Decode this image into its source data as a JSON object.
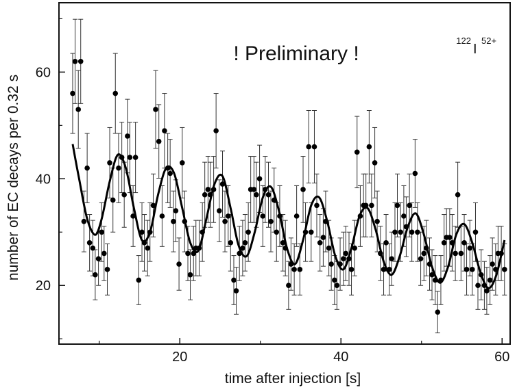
{
  "chart_data": {
    "type": "scatter",
    "title": "",
    "xlabel": "time after injection [s]",
    "ylabel": "number of EC decays per 0.32 s",
    "xlim": [
      5,
      61
    ],
    "ylim": [
      9,
      73
    ],
    "x_ticks": [
      20,
      40,
      60
    ],
    "y_ticks": [
      20,
      40,
      60
    ],
    "grid": false,
    "annotations": {
      "preliminary": "! Preliminary !",
      "isotope_mass": "122",
      "element": "I",
      "charge": "52+"
    },
    "colors": {
      "points": "#000000",
      "fit_line": "#000000",
      "error_bars": "#333333"
    },
    "fit": {
      "x": [
        6.7,
        7.5,
        8.5,
        9.5,
        10.3,
        11.3,
        12.3,
        13.3,
        14.3,
        15.3,
        16.3,
        17.3,
        18.3,
        19.3,
        20.3,
        21.3,
        22.3,
        23.3,
        24.3,
        25.3,
        26.3,
        27.3,
        28.3,
        29.3,
        30.3,
        31.3,
        32.3,
        33.3,
        34.3,
        35.3,
        36.3,
        37.3,
        38.3,
        39.3,
        40.3,
        41.3,
        42.3,
        43.3,
        44.3,
        45.3,
        46.3,
        47.3,
        48.3,
        49.3,
        50.3,
        51.3,
        52.3,
        53.3,
        54.3,
        55.3,
        56.3,
        57.3,
        58.3,
        59.3,
        60.3
      ],
      "y": [
        46.5,
        40.0,
        32.5,
        29.5,
        32.5,
        39.5,
        44.5,
        42.0,
        34.5,
        28.5,
        30.0,
        37.0,
        42.0,
        41.0,
        34.5,
        28.0,
        26.5,
        32.5,
        39.0,
        40.5,
        34.5,
        27.5,
        25.5,
        30.0,
        36.5,
        38.5,
        34.0,
        27.0,
        24.0,
        28.5,
        35.0,
        36.5,
        32.0,
        25.5,
        23.0,
        27.0,
        33.0,
        34.5,
        30.5,
        24.5,
        22.0,
        25.5,
        31.0,
        33.5,
        29.5,
        23.5,
        20.5,
        23.5,
        29.5,
        31.5,
        28.0,
        22.5,
        19.5,
        22.0,
        28.5
      ]
    },
    "points": [
      {
        "x": 6.7,
        "y": 56,
        "err": 7.5
      },
      {
        "x": 7.0,
        "y": 62,
        "err": 7.9
      },
      {
        "x": 7.4,
        "y": 53,
        "err": 7.3
      },
      {
        "x": 7.7,
        "y": 62,
        "err": 7.9
      },
      {
        "x": 8.1,
        "y": 32,
        "err": 5.7
      },
      {
        "x": 8.5,
        "y": 42,
        "err": 6.5
      },
      {
        "x": 8.8,
        "y": 28,
        "err": 5.3
      },
      {
        "x": 9.2,
        "y": 27,
        "err": 5.2
      },
      {
        "x": 9.5,
        "y": 22,
        "err": 4.7
      },
      {
        "x": 9.9,
        "y": 25,
        "err": 5.0
      },
      {
        "x": 10.3,
        "y": 30,
        "err": 5.5
      },
      {
        "x": 10.6,
        "y": 26,
        "err": 5.1
      },
      {
        "x": 11.0,
        "y": 23,
        "err": 4.8
      },
      {
        "x": 11.3,
        "y": 43,
        "err": 6.6
      },
      {
        "x": 11.7,
        "y": 36,
        "err": 6.0
      },
      {
        "x": 12.0,
        "y": 56,
        "err": 7.5
      },
      {
        "x": 12.4,
        "y": 42,
        "err": 6.5
      },
      {
        "x": 12.8,
        "y": 44,
        "err": 6.6
      },
      {
        "x": 13.1,
        "y": 37,
        "err": 6.1
      },
      {
        "x": 13.5,
        "y": 48,
        "err": 6.9
      },
      {
        "x": 13.8,
        "y": 44,
        "err": 6.6
      },
      {
        "x": 14.2,
        "y": 33,
        "err": 5.7
      },
      {
        "x": 14.5,
        "y": 44,
        "err": 6.6
      },
      {
        "x": 14.9,
        "y": 21,
        "err": 4.6
      },
      {
        "x": 15.3,
        "y": 30,
        "err": 5.5
      },
      {
        "x": 15.6,
        "y": 28,
        "err": 5.3
      },
      {
        "x": 16.0,
        "y": 27,
        "err": 5.2
      },
      {
        "x": 16.3,
        "y": 30,
        "err": 5.5
      },
      {
        "x": 16.7,
        "y": 35,
        "err": 5.9
      },
      {
        "x": 17.0,
        "y": 53,
        "err": 7.3
      },
      {
        "x": 17.4,
        "y": 47,
        "err": 6.9
      },
      {
        "x": 17.8,
        "y": 33,
        "err": 5.7
      },
      {
        "x": 18.1,
        "y": 49,
        "err": 7.0
      },
      {
        "x": 18.5,
        "y": 42,
        "err": 6.5
      },
      {
        "x": 18.8,
        "y": 41,
        "err": 6.4
      },
      {
        "x": 19.2,
        "y": 32,
        "err": 5.7
      },
      {
        "x": 19.5,
        "y": 34,
        "err": 5.8
      },
      {
        "x": 19.9,
        "y": 24,
        "err": 4.9
      },
      {
        "x": 20.3,
        "y": 43,
        "err": 6.6
      },
      {
        "x": 20.6,
        "y": 32,
        "err": 5.7
      },
      {
        "x": 21.0,
        "y": 26,
        "err": 5.1
      },
      {
        "x": 21.3,
        "y": 22,
        "err": 4.7
      },
      {
        "x": 21.7,
        "y": 26,
        "err": 5.1
      },
      {
        "x": 22.0,
        "y": 27,
        "err": 5.2
      },
      {
        "x": 22.4,
        "y": 27,
        "err": 5.2
      },
      {
        "x": 22.8,
        "y": 30,
        "err": 5.5
      },
      {
        "x": 23.1,
        "y": 37,
        "err": 6.1
      },
      {
        "x": 23.5,
        "y": 38,
        "err": 6.2
      },
      {
        "x": 23.8,
        "y": 37,
        "err": 6.1
      },
      {
        "x": 24.2,
        "y": 38,
        "err": 6.2
      },
      {
        "x": 24.5,
        "y": 49,
        "err": 7.0
      },
      {
        "x": 24.9,
        "y": 34,
        "err": 5.8
      },
      {
        "x": 25.3,
        "y": 39,
        "err": 6.2
      },
      {
        "x": 25.6,
        "y": 32,
        "err": 5.7
      },
      {
        "x": 26.0,
        "y": 33,
        "err": 5.7
      },
      {
        "x": 26.3,
        "y": 28,
        "err": 5.3
      },
      {
        "x": 26.7,
        "y": 21,
        "err": 4.6
      },
      {
        "x": 27.0,
        "y": 19,
        "err": 4.4
      },
      {
        "x": 27.4,
        "y": 26,
        "err": 5.1
      },
      {
        "x": 27.8,
        "y": 27,
        "err": 5.2
      },
      {
        "x": 28.1,
        "y": 28,
        "err": 5.3
      },
      {
        "x": 28.5,
        "y": 30,
        "err": 5.5
      },
      {
        "x": 28.8,
        "y": 38,
        "err": 6.2
      },
      {
        "x": 29.2,
        "y": 38,
        "err": 6.2
      },
      {
        "x": 29.5,
        "y": 37,
        "err": 6.1
      },
      {
        "x": 29.9,
        "y": 40,
        "err": 6.3
      },
      {
        "x": 30.3,
        "y": 33,
        "err": 5.7
      },
      {
        "x": 30.6,
        "y": 38,
        "err": 6.2
      },
      {
        "x": 31.0,
        "y": 37,
        "err": 6.1
      },
      {
        "x": 31.3,
        "y": 32,
        "err": 5.7
      },
      {
        "x": 31.7,
        "y": 36,
        "err": 6.0
      },
      {
        "x": 32.0,
        "y": 30,
        "err": 5.5
      },
      {
        "x": 32.4,
        "y": 33,
        "err": 5.7
      },
      {
        "x": 32.8,
        "y": 28,
        "err": 5.3
      },
      {
        "x": 33.1,
        "y": 27,
        "err": 5.2
      },
      {
        "x": 33.5,
        "y": 20,
        "err": 4.5
      },
      {
        "x": 33.8,
        "y": 24,
        "err": 4.9
      },
      {
        "x": 34.2,
        "y": 23,
        "err": 4.8
      },
      {
        "x": 34.5,
        "y": 33,
        "err": 5.7
      },
      {
        "x": 34.9,
        "y": 23,
        "err": 4.8
      },
      {
        "x": 35.3,
        "y": 38,
        "err": 6.2
      },
      {
        "x": 35.6,
        "y": 30,
        "err": 5.5
      },
      {
        "x": 36.0,
        "y": 46,
        "err": 6.8
      },
      {
        "x": 36.3,
        "y": 30,
        "err": 5.5
      },
      {
        "x": 36.7,
        "y": 46,
        "err": 6.8
      },
      {
        "x": 37.0,
        "y": 35,
        "err": 5.9
      },
      {
        "x": 37.4,
        "y": 28,
        "err": 5.3
      },
      {
        "x": 37.8,
        "y": 29,
        "err": 5.4
      },
      {
        "x": 38.1,
        "y": 32,
        "err": 5.7
      },
      {
        "x": 38.5,
        "y": 27,
        "err": 5.2
      },
      {
        "x": 38.8,
        "y": 24,
        "err": 4.9
      },
      {
        "x": 39.2,
        "y": 21,
        "err": 4.6
      },
      {
        "x": 39.5,
        "y": 20,
        "err": 4.5
      },
      {
        "x": 39.9,
        "y": 24,
        "err": 4.9
      },
      {
        "x": 40.3,
        "y": 25,
        "err": 5.0
      },
      {
        "x": 40.6,
        "y": 26,
        "err": 5.1
      },
      {
        "x": 41.0,
        "y": 25,
        "err": 5.0
      },
      {
        "x": 41.3,
        "y": 23,
        "err": 4.8
      },
      {
        "x": 41.7,
        "y": 27,
        "err": 5.2
      },
      {
        "x": 42.0,
        "y": 45,
        "err": 6.7
      },
      {
        "x": 42.4,
        "y": 33,
        "err": 5.7
      },
      {
        "x": 42.8,
        "y": 35,
        "err": 5.9
      },
      {
        "x": 43.1,
        "y": 35,
        "err": 5.9
      },
      {
        "x": 43.5,
        "y": 46,
        "err": 6.8
      },
      {
        "x": 43.8,
        "y": 35,
        "err": 5.9
      },
      {
        "x": 44.2,
        "y": 43,
        "err": 6.6
      },
      {
        "x": 44.5,
        "y": 32,
        "err": 5.7
      },
      {
        "x": 44.9,
        "y": 26,
        "err": 5.1
      },
      {
        "x": 45.3,
        "y": 23,
        "err": 4.8
      },
      {
        "x": 45.6,
        "y": 28,
        "err": 5.3
      },
      {
        "x": 46.0,
        "y": 23,
        "err": 4.8
      },
      {
        "x": 46.3,
        "y": 25,
        "err": 5.0
      },
      {
        "x": 46.7,
        "y": 30,
        "err": 5.5
      },
      {
        "x": 47.0,
        "y": 35,
        "err": 5.9
      },
      {
        "x": 47.4,
        "y": 30,
        "err": 5.5
      },
      {
        "x": 47.8,
        "y": 33,
        "err": 5.7
      },
      {
        "x": 48.1,
        "y": 31,
        "err": 5.6
      },
      {
        "x": 48.5,
        "y": 35,
        "err": 5.9
      },
      {
        "x": 48.8,
        "y": 30,
        "err": 5.5
      },
      {
        "x": 49.2,
        "y": 41,
        "err": 6.4
      },
      {
        "x": 49.5,
        "y": 30,
        "err": 5.5
      },
      {
        "x": 49.9,
        "y": 25,
        "err": 5.0
      },
      {
        "x": 50.3,
        "y": 26,
        "err": 5.1
      },
      {
        "x": 50.6,
        "y": 27,
        "err": 5.2
      },
      {
        "x": 51.0,
        "y": 24,
        "err": 4.9
      },
      {
        "x": 51.3,
        "y": 22,
        "err": 4.7
      },
      {
        "x": 51.7,
        "y": 21,
        "err": 4.6
      },
      {
        "x": 52.0,
        "y": 15,
        "err": 3.9
      },
      {
        "x": 52.4,
        "y": 21,
        "err": 4.6
      },
      {
        "x": 52.8,
        "y": 28,
        "err": 5.3
      },
      {
        "x": 53.1,
        "y": 29,
        "err": 5.4
      },
      {
        "x": 53.5,
        "y": 29,
        "err": 5.4
      },
      {
        "x": 53.8,
        "y": 28,
        "err": 5.3
      },
      {
        "x": 54.2,
        "y": 26,
        "err": 5.1
      },
      {
        "x": 54.5,
        "y": 37,
        "err": 6.1
      },
      {
        "x": 54.9,
        "y": 26,
        "err": 5.1
      },
      {
        "x": 55.3,
        "y": 28,
        "err": 5.3
      },
      {
        "x": 55.6,
        "y": 23,
        "err": 4.8
      },
      {
        "x": 56.0,
        "y": 27,
        "err": 5.2
      },
      {
        "x": 56.3,
        "y": 23,
        "err": 4.8
      },
      {
        "x": 56.7,
        "y": 30,
        "err": 5.5
      },
      {
        "x": 57.0,
        "y": 20,
        "err": 4.5
      },
      {
        "x": 57.4,
        "y": 22,
        "err": 4.7
      },
      {
        "x": 57.8,
        "y": 20,
        "err": 4.5
      },
      {
        "x": 58.1,
        "y": 19,
        "err": 4.4
      },
      {
        "x": 58.5,
        "y": 21,
        "err": 4.6
      },
      {
        "x": 58.8,
        "y": 24,
        "err": 4.9
      },
      {
        "x": 59.2,
        "y": 23,
        "err": 4.8
      },
      {
        "x": 59.5,
        "y": 26,
        "err": 5.1
      },
      {
        "x": 59.9,
        "y": 26,
        "err": 5.1
      },
      {
        "x": 60.3,
        "y": 23,
        "err": 4.8
      }
    ]
  }
}
